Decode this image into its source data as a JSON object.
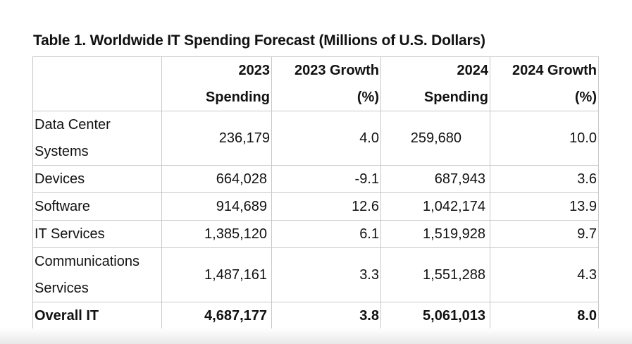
{
  "caption": "Table 1. Worldwide IT Spending Forecast (Millions of U.S. Dollars)",
  "table": {
    "headers": [
      {
        "line1": "",
        "line2": ""
      },
      {
        "line1": "2023",
        "line2": "Spending"
      },
      {
        "line1": "2023 Growth",
        "line2": "(%)"
      },
      {
        "line1": "2024",
        "line2": "Spending"
      },
      {
        "line1": "2024 Growth",
        "line2": "(%)"
      }
    ],
    "rows": [
      {
        "segment": "Data Center Systems",
        "spend_2023": "236,179",
        "growth_2023": "4.0",
        "spend_2024": "259,680",
        "growth_2024": "10.0"
      },
      {
        "segment": "Devices",
        "spend_2023": "664,028",
        "growth_2023": "-9.1",
        "spend_2024": "687,943",
        "growth_2024": "3.6"
      },
      {
        "segment": "Software",
        "spend_2023": "914,689",
        "growth_2023": "12.6",
        "spend_2024": "1,042,174",
        "growth_2024": "13.9"
      },
      {
        "segment": "IT Services",
        "spend_2023": "1,385,120",
        "growth_2023": "6.1",
        "spend_2024": "1,519,928",
        "growth_2024": "9.7"
      },
      {
        "segment": "Communications Services",
        "spend_2023": "1,487,161",
        "growth_2023": "3.3",
        "spend_2024": "1,551,288",
        "growth_2024": "4.3"
      },
      {
        "segment": "Overall IT",
        "spend_2023": "4,687,177",
        "growth_2023": "3.8",
        "spend_2024": "5,061,013",
        "growth_2024": "8.0"
      }
    ]
  }
}
